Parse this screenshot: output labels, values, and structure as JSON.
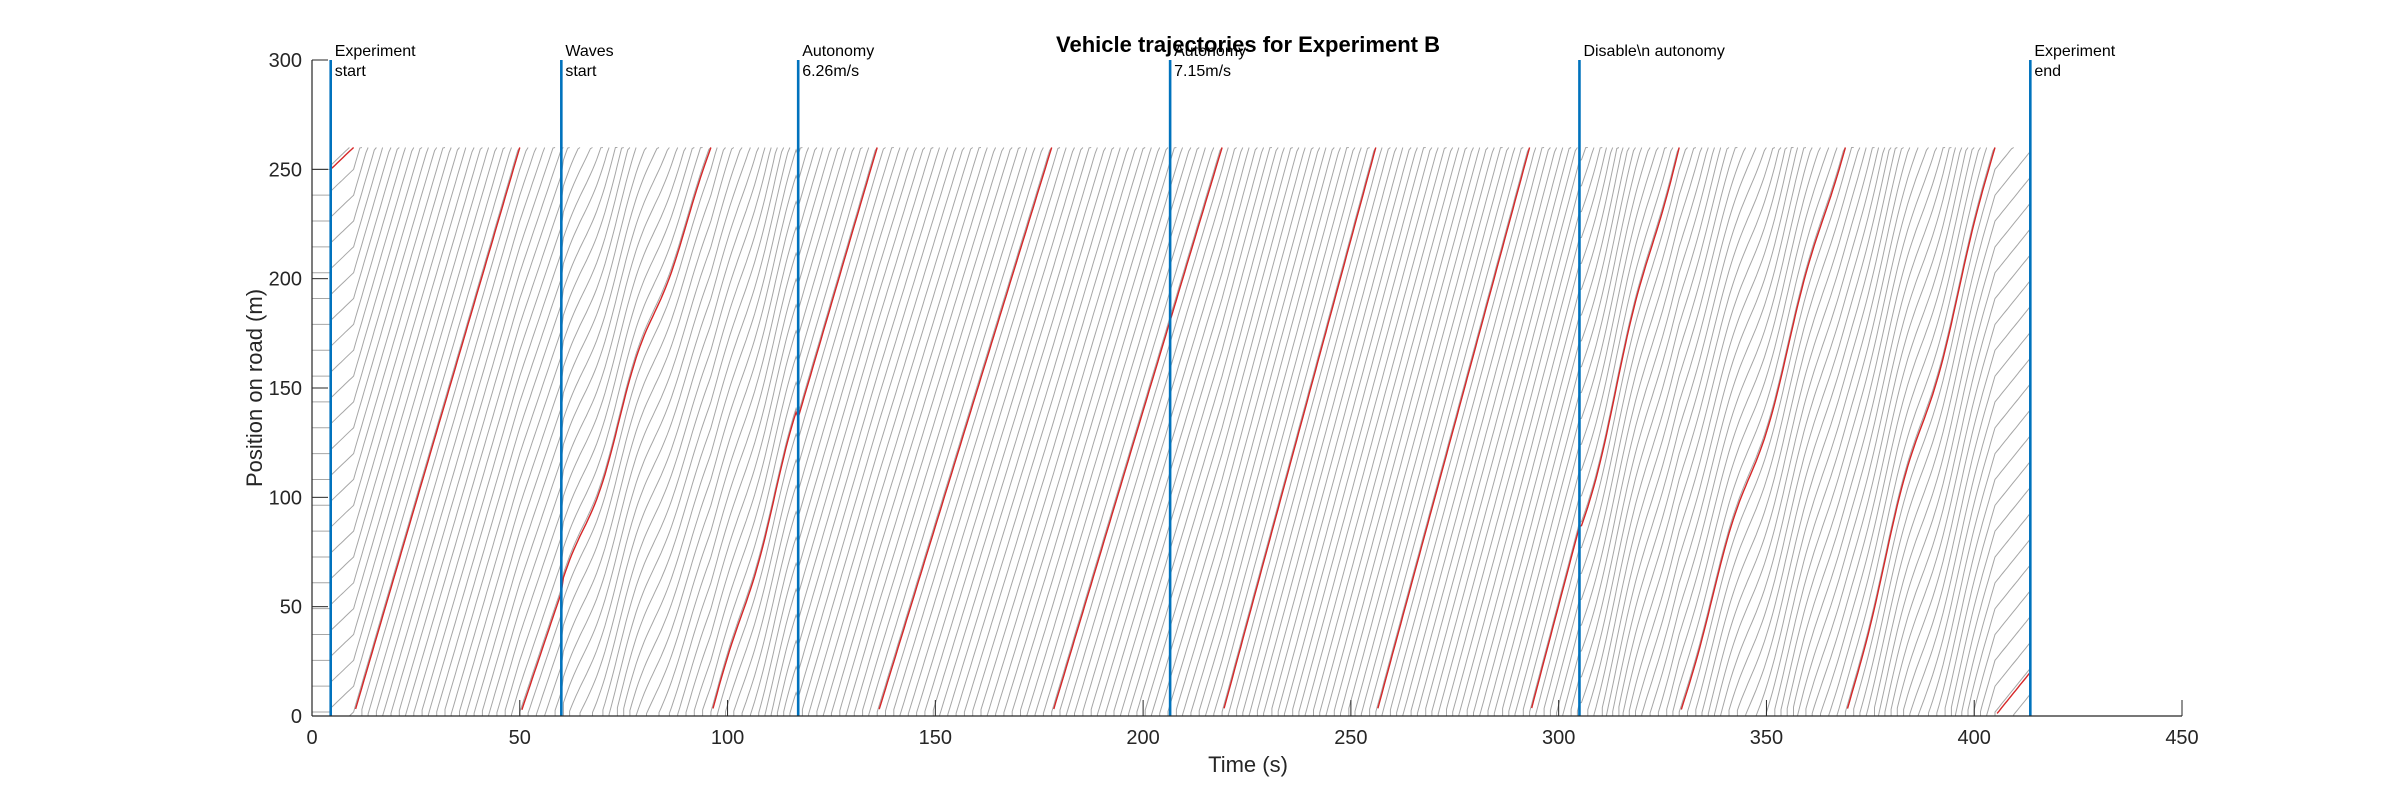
{
  "chart_data": {
    "type": "line",
    "title": "Vehicle trajectories for Experiment B",
    "xlabel": "Time (s)",
    "ylabel": "Position on road (m)",
    "xlim": [
      0,
      450
    ],
    "ylim": [
      0,
      300
    ],
    "xticks": [
      "0",
      "50",
      "100",
      "150",
      "200",
      "250",
      "300",
      "350",
      "400",
      "450"
    ],
    "yticks": [
      "0",
      "50",
      "100",
      "150",
      "200",
      "250",
      "300"
    ],
    "road_length": 260,
    "grid": false,
    "legend": "none",
    "colors": {
      "trajectory": "#a6a6a6",
      "highlighted_trajectory": "#d62728",
      "event_line": "#0072bd",
      "axis": "#262626"
    },
    "events": [
      {
        "x": 4.5,
        "label_lines": [
          "Experiment",
          " start"
        ]
      },
      {
        "x": 60,
        "label_lines": [
          "Waves",
          " start"
        ]
      },
      {
        "x": 117,
        "label_lines": [
          "Autonomy",
          " 6.26m/s"
        ]
      },
      {
        "x": 206.5,
        "label_lines": [
          "Autonomy",
          " 7.15m/s"
        ]
      },
      {
        "x": 305,
        "label_lines": [
          "Disable\\n autonomy"
        ]
      },
      {
        "x": 413.5,
        "label_lines": [
          "Experiment",
          " end"
        ]
      }
    ],
    "highlighted_vehicle_crossings": [
      10,
      50,
      96,
      136,
      178,
      219,
      256,
      293,
      329,
      369,
      405
    ],
    "experiment_start": 4.5,
    "experiment_end": 413.5
  }
}
